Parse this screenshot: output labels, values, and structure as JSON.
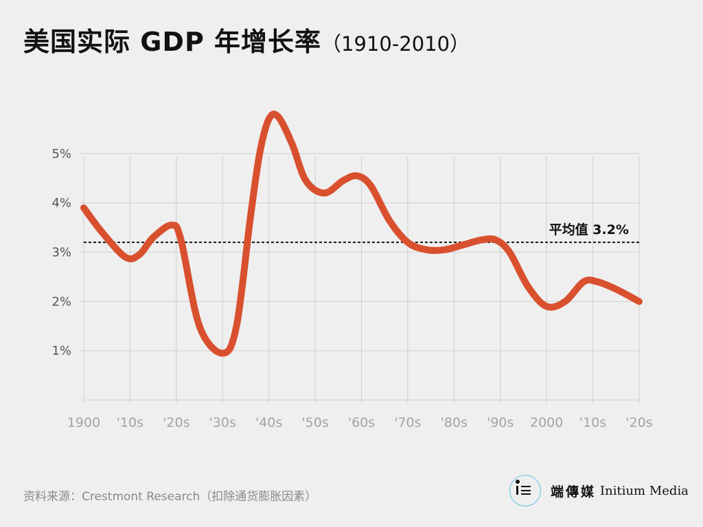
{
  "title": {
    "main": "美国实际 GDP 年增长率",
    "sub": "（1910-2010）"
  },
  "source": "资料来源：Crestmont Research（扣除通货膨胀因素）",
  "brand": {
    "logo_icon": "initium-logo-icon",
    "name_cn": "端傳媒",
    "name_en": "Initium Media"
  },
  "colors": {
    "background": "#efefef",
    "line": "#d9502f",
    "grid": "#cfcfcf",
    "average": "#111111",
    "logo_ring": "#68c3e0"
  },
  "chart_data": {
    "type": "line",
    "title": "美国实际 GDP 年增长率（1910-2010）",
    "x_tick_labels": [
      "1900",
      "'10s",
      "'20s",
      "'30s",
      "'40s",
      "'50s",
      "'60s",
      "'70s",
      "'80s",
      "'90s",
      "2000",
      "'10s",
      "'20s"
    ],
    "x_tick_years": [
      1900,
      1910,
      1920,
      1930,
      1940,
      1950,
      1960,
      1970,
      1980,
      1990,
      2000,
      2010,
      2020
    ],
    "y_tick_labels": [
      "1%",
      "2%",
      "3%",
      "4%",
      "5%"
    ],
    "y_tick_values": [
      1,
      2,
      3,
      4,
      5
    ],
    "xlim": [
      1900,
      2020
    ],
    "ylim": [
      0,
      5.5
    ],
    "grid": true,
    "series": [
      {
        "x": [
          1900,
          1904,
          1909,
          1912,
          1915,
          1919,
          1921,
          1925,
          1930,
          1933,
          1936,
          1938,
          1940,
          1942,
          1945,
          1948,
          1952,
          1956,
          1959,
          1962,
          1966,
          1970,
          1974,
          1978,
          1982,
          1986,
          1989,
          1992,
          1996,
          2000,
          2004,
          2008,
          2011,
          2015,
          2020
        ],
        "y": [
          3.9,
          3.4,
          2.9,
          2.95,
          3.3,
          3.55,
          3.25,
          1.5,
          0.95,
          1.5,
          3.7,
          5.0,
          5.7,
          5.75,
          5.2,
          4.45,
          4.2,
          4.45,
          4.55,
          4.35,
          3.65,
          3.2,
          3.05,
          3.05,
          3.15,
          3.25,
          3.25,
          3.0,
          2.3,
          1.9,
          2.0,
          2.4,
          2.4,
          2.25,
          2.0
        ]
      }
    ],
    "average": {
      "value": 3.2,
      "label": "平均值 3.2%"
    }
  }
}
